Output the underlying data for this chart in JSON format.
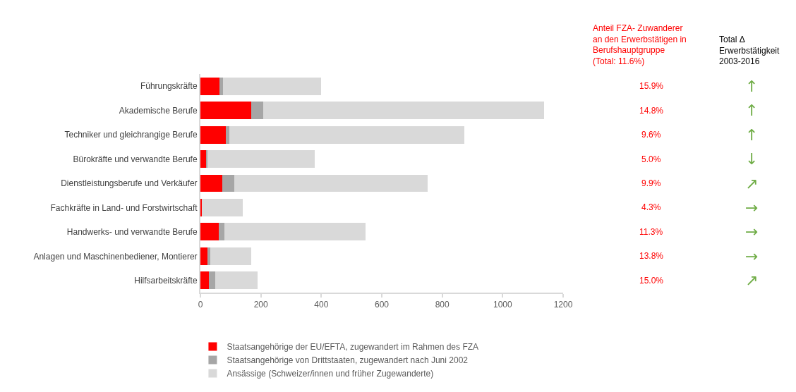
{
  "chart_data": {
    "type": "bar",
    "orientation": "horizontal",
    "stacked": true,
    "categories": [
      "Führungskräfte",
      "Akademische Berufe",
      "Techniker und gleichrangige Berufe",
      "Bürokräfte und verwandte Berufe",
      "Dienstleistungsberufe und Verkäufer",
      "Fachkräfte in Land- und Forstwirtschaft",
      "Handwerks- und verwandte Berufe",
      "Anlagen und Maschinenbediener, Montierer",
      "Hilfsarbeitskräfte"
    ],
    "series": [
      {
        "name": "Staatsangehörige der EU/EFTA, zugewandert im Rahmen des FZA",
        "color": "#ff0000",
        "values": [
          62,
          167,
          83,
          18,
          73,
          5,
          61,
          23,
          27
        ]
      },
      {
        "name": "Staatsangehörige von Drittstaaten, zugewandert nach Juni 2002",
        "color": "#a6a6a6",
        "values": [
          12,
          40,
          13,
          6,
          40,
          0,
          19,
          9,
          23
        ]
      },
      {
        "name": "Ansässige (Schweizer/innen und früher Zugewanderte)",
        "color": "#d9d9d9",
        "values": [
          325,
          929,
          777,
          354,
          638,
          134,
          466,
          135,
          140
        ]
      }
    ],
    "xlim": [
      0,
      1200
    ],
    "xticks": [
      0,
      200,
      400,
      600,
      800,
      1000,
      1200
    ],
    "legend": "bottom left",
    "annotations": [
      "Anteil FZA- Zuwanderer\nan den Erwerbstätigen in\nBerufshauptgruppe\n(Total: 11.6%)",
      "Total Δ\nErwerbstätigkeit\n2003-2016",
      "15.9%",
      "14.8%",
      "9.6%",
      "5.0%",
      "9.9%",
      "4.3%",
      "11.3%",
      "13.8%",
      "15.0%",
      "↑",
      "↑",
      "↑",
      "↓",
      "↗",
      "→",
      "→",
      "→",
      "↗"
    ]
  }
}
